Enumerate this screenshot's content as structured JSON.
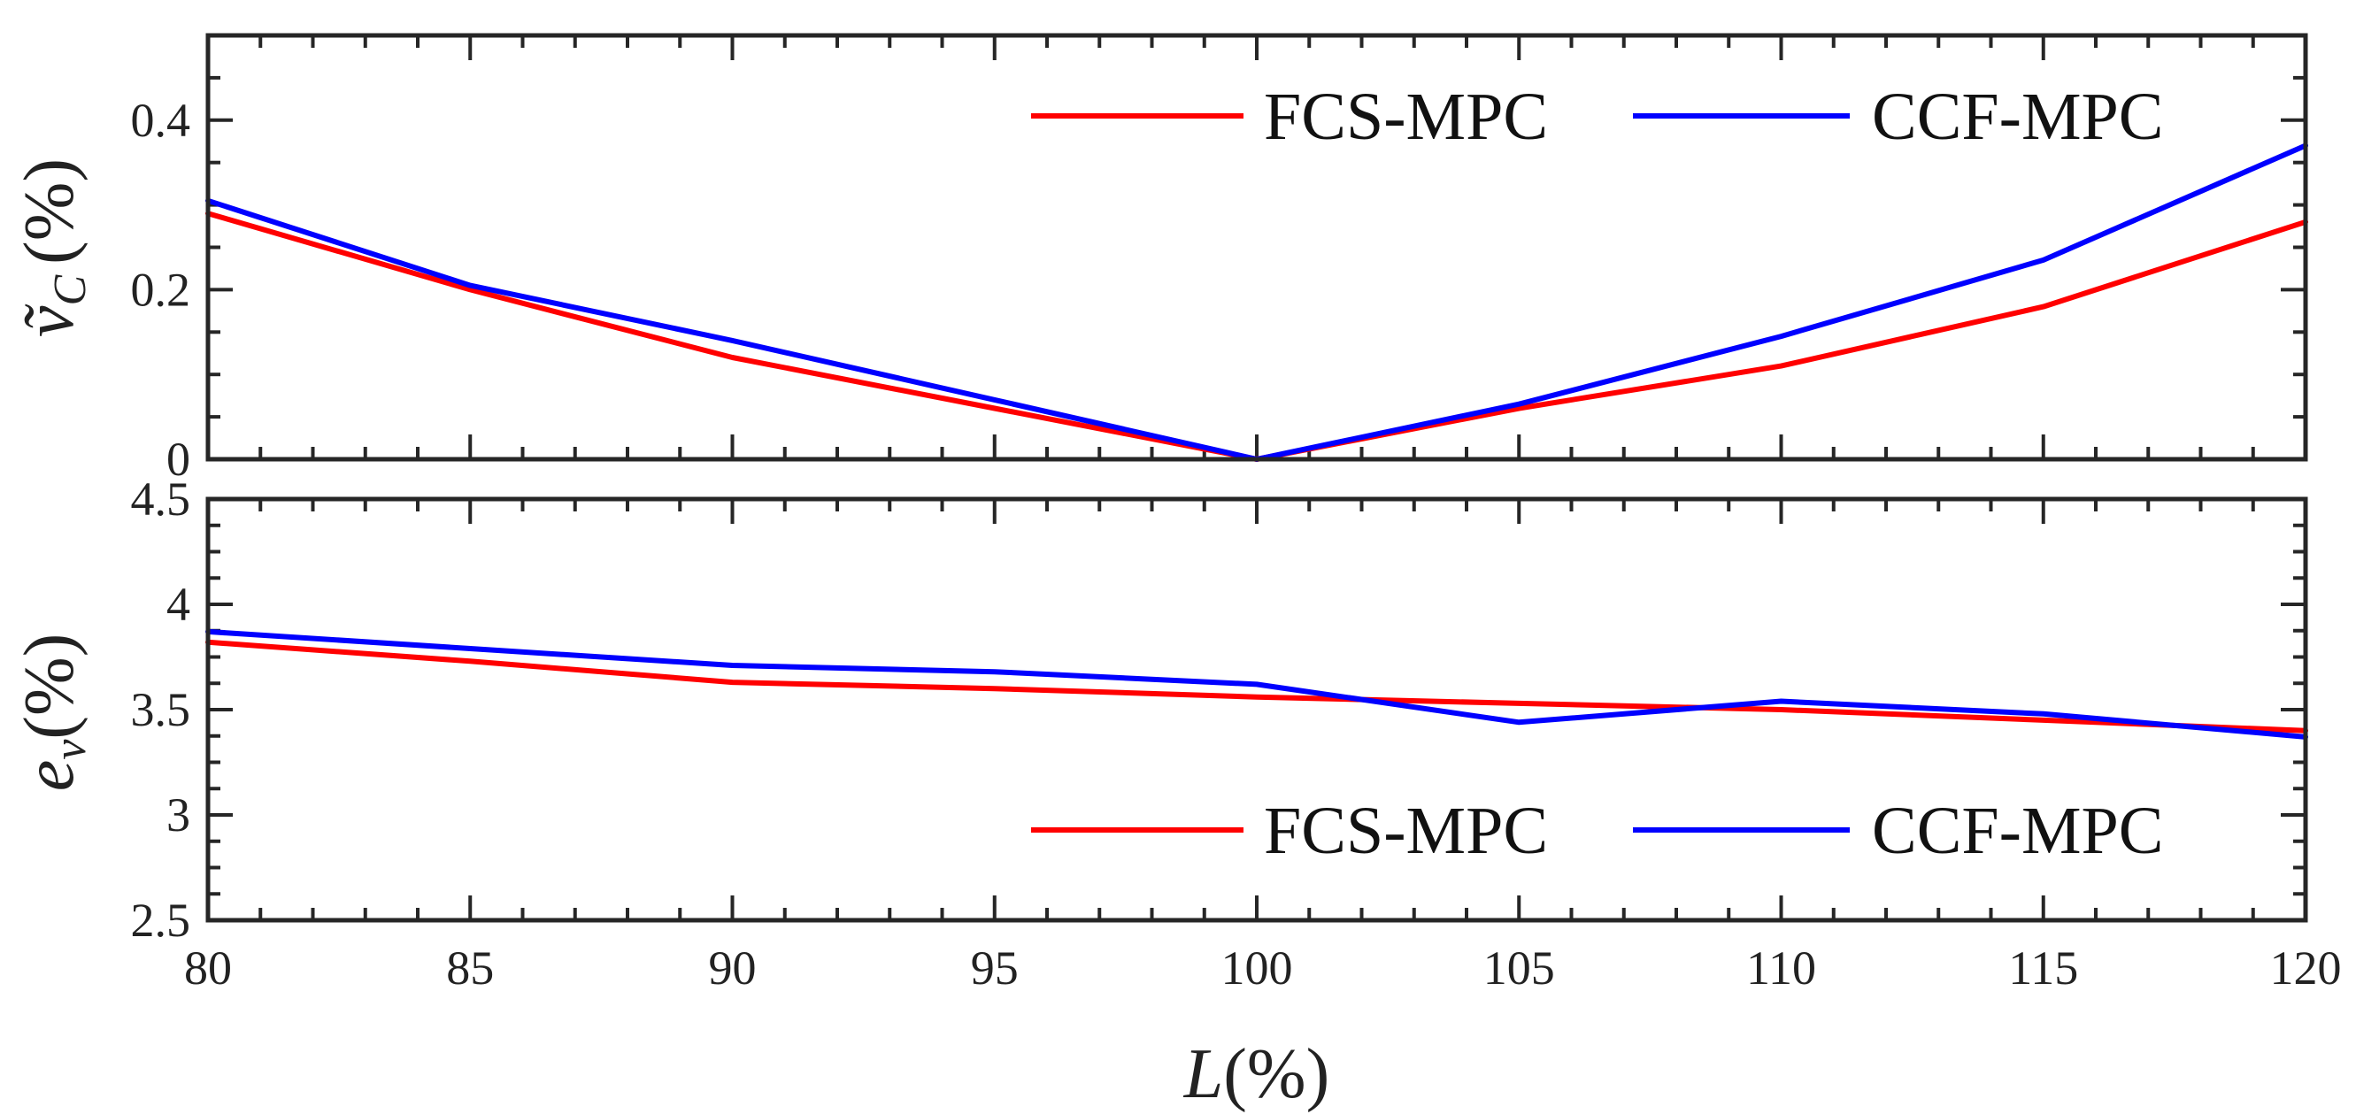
{
  "chart_data": [
    {
      "type": "line",
      "panel": "top",
      "x": [
        80,
        85,
        90,
        95,
        100,
        105,
        110,
        115,
        120
      ],
      "series": [
        {
          "name": "FCS-MPC",
          "color": "#ff0000",
          "values": [
            0.29,
            0.2,
            0.12,
            0.06,
            0.0,
            0.06,
            0.11,
            0.18,
            0.28
          ]
        },
        {
          "name": "CCF-MPC",
          "color": "#0000ff",
          "values": [
            0.305,
            0.205,
            0.14,
            0.07,
            0.0,
            0.065,
            0.145,
            0.235,
            0.37
          ]
        }
      ],
      "xlim": [
        80,
        120
      ],
      "ylim": [
        0,
        0.5
      ],
      "xticks": [
        "80",
        "85",
        "90",
        "95",
        "100",
        "105",
        "110",
        "115",
        "120"
      ],
      "yticks": [
        "0",
        "0.2",
        "0.4"
      ],
      "ylabel_symbol": "ṽ",
      "ylabel_subscript": "C",
      "ylabel_unit": "(%)",
      "legend_labels": [
        "FCS-MPC",
        "CCF-MPC"
      ],
      "legend": "top-right"
    },
    {
      "type": "line",
      "panel": "bottom",
      "x": [
        80,
        85,
        90,
        95,
        100,
        105,
        110,
        115,
        120
      ],
      "series": [
        {
          "name": "FCS-MPC",
          "color": "#ff0000",
          "values": [
            3.82,
            3.73,
            3.63,
            3.6,
            3.56,
            3.53,
            3.5,
            3.45,
            3.4
          ]
        },
        {
          "name": "CCF-MPC",
          "color": "#0000ff",
          "values": [
            3.87,
            3.79,
            3.71,
            3.68,
            3.62,
            3.44,
            3.54,
            3.48,
            3.37
          ]
        }
      ],
      "xlim": [
        80,
        120
      ],
      "ylim": [
        2.5,
        4.5
      ],
      "xticks": [
        "80",
        "85",
        "90",
        "95",
        "100",
        "105",
        "110",
        "115",
        "120"
      ],
      "yticks": [
        "2.5",
        "3",
        "3.5",
        "4",
        "4.5"
      ],
      "ylabel_symbol": "e",
      "ylabel_subscript": "v",
      "ylabel_unit": "(%)",
      "xlabel_symbol": "L",
      "xlabel_unit": "(%)",
      "legend_labels": [
        "FCS-MPC",
        "CCF-MPC"
      ],
      "legend": "bottom-right"
    }
  ]
}
